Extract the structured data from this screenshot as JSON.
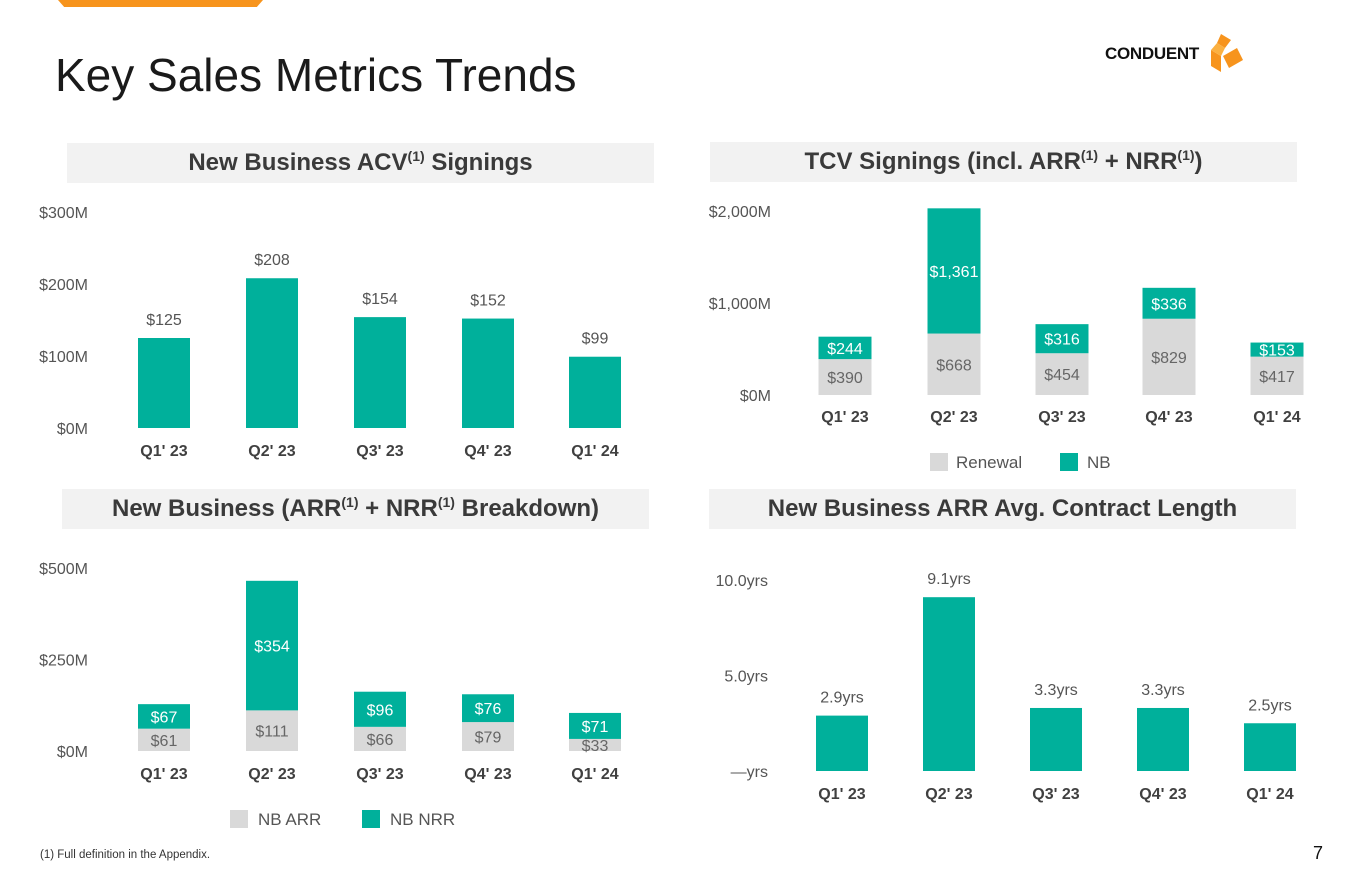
{
  "title": "Key Sales Metrics Trends",
  "logo": {
    "text": "CONDUENT"
  },
  "page_number": "7",
  "footnote": "(1) Full definition in the Appendix.",
  "colors": {
    "nb": "#00b09b",
    "renewal": "#d9d9d9",
    "axis_text": "#555555",
    "accent": "#f7941d"
  },
  "panels": {
    "acv": {
      "title_pre": "New Business ACV",
      "sup": "(1)",
      "title_post": " Signings"
    },
    "tcv": {
      "title_pre": "TCV Signings (incl. ARR",
      "sup1": "(1)",
      "title_mid": " + NRR",
      "sup2": "(1)",
      "title_post": ")"
    },
    "breakdown": {
      "title_pre": "New Business (ARR",
      "sup1": "(1)",
      "title_mid": " + NRR",
      "sup2": "(1)",
      "title_post": " Breakdown)"
    },
    "length": {
      "title": "New Business ARR Avg. Contract Length"
    }
  },
  "chart_data": [
    {
      "id": "acv",
      "type": "bar",
      "title": "New Business ACV(1) Signings",
      "categories": [
        "Q1' 23",
        "Q2' 23",
        "Q3' 23",
        "Q4' 23",
        "Q1' 24"
      ],
      "values": [
        125,
        208,
        154,
        152,
        99
      ],
      "labels": [
        "$125",
        "$208",
        "$154",
        "$152",
        "$99"
      ],
      "yticks": [
        0,
        100,
        200,
        300
      ],
      "ytick_labels": [
        "$0M",
        "$100M",
        "$200M",
        "$300M"
      ],
      "ylim": [
        0,
        300
      ]
    },
    {
      "id": "tcv",
      "type": "bar",
      "stacked": true,
      "title": "TCV Signings (incl. ARR(1) + NRR(1))",
      "categories": [
        "Q1' 23",
        "Q2' 23",
        "Q3' 23",
        "Q4' 23",
        "Q1' 24"
      ],
      "series": [
        {
          "name": "Renewal",
          "values": [
            390,
            668,
            454,
            829,
            417
          ],
          "labels": [
            "$390",
            "$668",
            "$454",
            "$829",
            "$417"
          ]
        },
        {
          "name": "NB",
          "values": [
            244,
            1361,
            316,
            336,
            153
          ],
          "labels": [
            "$244",
            "$1,361",
            "$316",
            "$336",
            "$153"
          ]
        }
      ],
      "yticks": [
        0,
        1000,
        2000
      ],
      "ytick_labels": [
        "$0M",
        "$1,000M",
        "$2,000M"
      ],
      "ylim": [
        0,
        2000
      ],
      "legend": [
        "Renewal",
        "NB"
      ]
    },
    {
      "id": "breakdown",
      "type": "bar",
      "stacked": true,
      "title": "New Business (ARR(1) + NRR(1) Breakdown)",
      "categories": [
        "Q1' 23",
        "Q2' 23",
        "Q3' 23",
        "Q4' 23",
        "Q1' 24"
      ],
      "series": [
        {
          "name": "NB ARR",
          "values": [
            61,
            111,
            66,
            79,
            33
          ],
          "labels": [
            "$61",
            "$111",
            "$66",
            "$79",
            "$33"
          ]
        },
        {
          "name": "NB NRR",
          "values": [
            67,
            354,
            96,
            76,
            71
          ],
          "labels": [
            "$67",
            "$354",
            "$96",
            "$76",
            "$71"
          ]
        }
      ],
      "yticks": [
        0,
        250,
        500
      ],
      "ytick_labels": [
        "$0M",
        "$250M",
        "$500M"
      ],
      "ylim": [
        0,
        500
      ],
      "legend": [
        "NB ARR",
        "NB NRR"
      ]
    },
    {
      "id": "length",
      "type": "bar",
      "title": "New Business ARR Avg. Contract Length",
      "categories": [
        "Q1' 23",
        "Q2' 23",
        "Q3' 23",
        "Q4' 23",
        "Q1' 24"
      ],
      "values": [
        2.9,
        9.1,
        3.3,
        3.3,
        2.5
      ],
      "labels": [
        "2.9yrs",
        "9.1yrs",
        "3.3yrs",
        "3.3yrs",
        "2.5yrs"
      ],
      "yticks": [
        0,
        5,
        10
      ],
      "ytick_labels": [
        "—yrs",
        "5.0yrs",
        "10.0yrs"
      ],
      "ylim": [
        0,
        10
      ]
    }
  ]
}
